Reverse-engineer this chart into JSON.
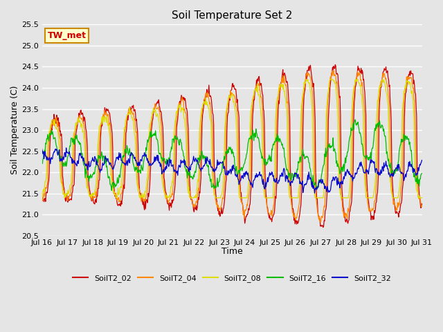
{
  "title": "Soil Temperature Set 2",
  "xlabel": "Time",
  "ylabel": "Soil Temperature (C)",
  "ylim": [
    20.5,
    25.5
  ],
  "series_colors": {
    "SoilT2_02": "#cc0000",
    "SoilT2_04": "#ff8800",
    "SoilT2_08": "#dddd00",
    "SoilT2_16": "#00bb00",
    "SoilT2_32": "#0000cc"
  },
  "x_tick_labels": [
    "Jul 16",
    "Jul 17",
    "Jul 18",
    "Jul 19",
    "Jul 20",
    "Jul 21",
    "Jul 22",
    "Jul 23",
    "Jul 24",
    "Jul 25",
    "Jul 26",
    "Jul 27",
    "Jul 28",
    "Jul 29",
    "Jul 30",
    "Jul 31"
  ],
  "annotation_text": "TW_met",
  "annotation_color": "#cc0000",
  "annotation_bg": "#ffffcc",
  "annotation_border": "#cc8800",
  "bg_color": "#e5e5e5",
  "plot_bg_color": "#e5e5e5",
  "grid_color": "#ffffff",
  "figwidth": 6.4,
  "figheight": 4.8,
  "dpi": 100
}
